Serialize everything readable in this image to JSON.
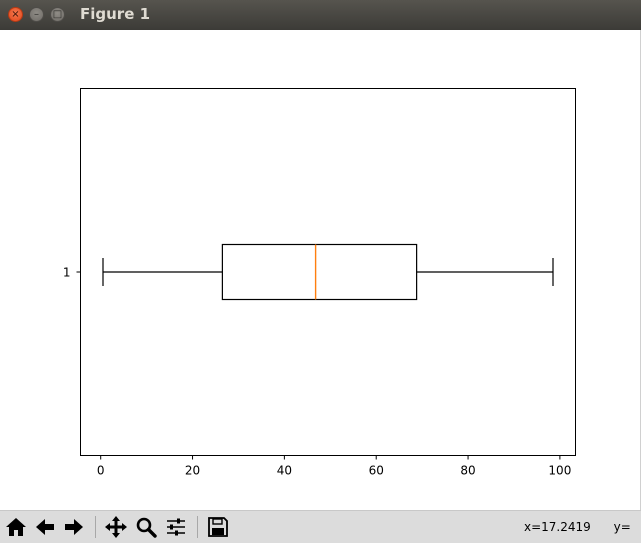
{
  "window": {
    "title": "Figure 1",
    "close_glyph": "×",
    "min_glyph": "–",
    "max_glyph": "□"
  },
  "toolbar": {
    "buttons": [
      {
        "name": "home-button",
        "icon": "home-icon"
      },
      {
        "name": "back-button",
        "icon": "arrow-left-icon"
      },
      {
        "name": "forward-button",
        "icon": "arrow-right-icon"
      },
      {
        "name": "pan-button",
        "icon": "move-icon"
      },
      {
        "name": "zoom-button",
        "icon": "magnifier-icon"
      },
      {
        "name": "configure-subplots-button",
        "icon": "sliders-icon"
      },
      {
        "name": "save-button",
        "icon": "floppy-disk-icon"
      }
    ],
    "coords_text": "x=17.2419      y="
  },
  "chart_data": {
    "type": "boxplot",
    "orientation": "horizontal",
    "categories": [
      "1"
    ],
    "boxes": [
      {
        "label": "1",
        "whisker_low": 0.5,
        "q1": 26.5,
        "median": 46.8,
        "q3": 68.8,
        "whisker_high": 98.5
      }
    ],
    "xlim": [
      -4.4,
      103.4
    ],
    "xticks": [
      0,
      20,
      40,
      60,
      80,
      100
    ],
    "xlabel": "",
    "ylabel": "",
    "title": "",
    "grid": false,
    "colors": {
      "box": "#000000",
      "median": "#ff7f0e"
    }
  }
}
